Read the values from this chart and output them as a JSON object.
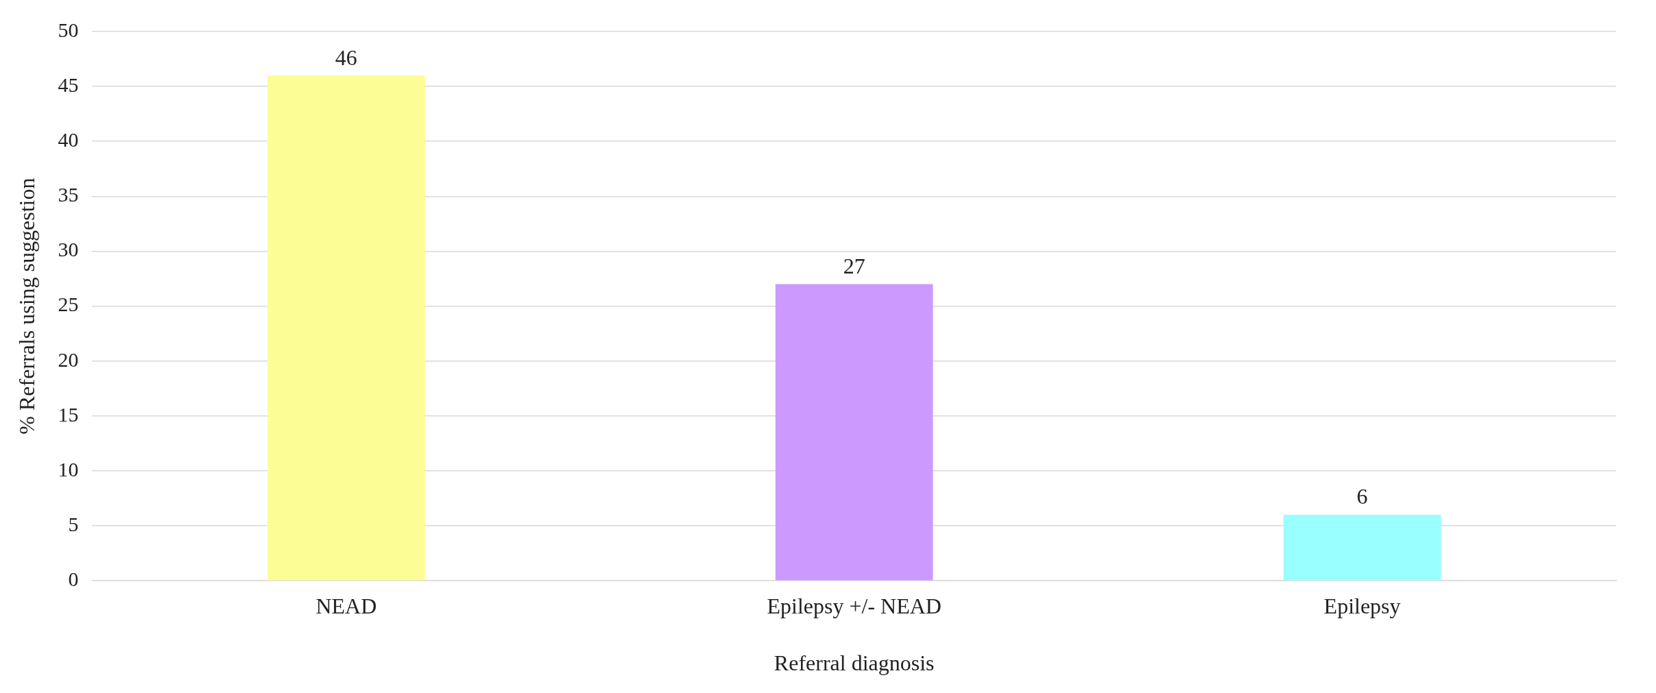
{
  "chart_data": {
    "type": "bar",
    "xlabel": "Referral diagnosis",
    "ylabel": "% Referrals using suggestion",
    "categories": [
      "NEAD",
      "Epilepsy +/- NEAD",
      "Epilepsy"
    ],
    "values": [
      46,
      27,
      6
    ],
    "colors": [
      "#fdfd96",
      "#cc99ff",
      "#99ffff"
    ],
    "ylim": [
      0,
      50
    ],
    "yticks": [
      0,
      5,
      10,
      15,
      20,
      25,
      30,
      35,
      40,
      45,
      50
    ],
    "grid": "y",
    "data_labels": true,
    "legend": false
  }
}
